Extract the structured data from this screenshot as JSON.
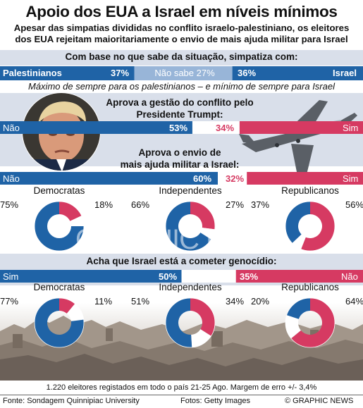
{
  "title": "Apoio dos EUA a Israel em níveis mínimos",
  "subtitle_line1": "Apesar das simpatias divididas no conflito israelo-palestiniano, os eleitores",
  "subtitle_line2": "dos EUA rejeitam maioritariamente o envio de mais ajuda militar para Israel",
  "watermark": "GRAPHIC NEWS",
  "colors": {
    "blue": "#1f63a6",
    "red": "#d63a62",
    "lightblue": "#98b5d8",
    "gray": "#d7dde8"
  },
  "sympathy": {
    "question": "Com base no que sabe da situação, simpatiza com:",
    "left_label": "Palestinianos",
    "left_pct": "37%",
    "middle_label": "Não sabe 27%",
    "right_pct": "36%",
    "right_label": "Israel",
    "values": [
      37,
      27,
      36
    ]
  },
  "caption": "Máximo de sempre para os palestinianos – e mínimo de sempre para Israel",
  "trump": {
    "question_line1": "Aprova a gestão do conflito pelo",
    "question_line2": "Presidente Trumpt:",
    "no_label": "Não",
    "no_pct": "53%",
    "yes_pct": "34%",
    "yes_label": "Sim",
    "values": [
      53,
      13,
      34
    ]
  },
  "aid": {
    "question_line1": "Aprova o envio de",
    "question_line2": "mais ajuda militar a Israel:",
    "no_label": "Não",
    "no_pct": "60%",
    "yes_pct": "32%",
    "yes_label": "Sim",
    "values": [
      60,
      8,
      32
    ]
  },
  "aid_parties": [
    {
      "party": "Democratas",
      "left_pct": "75%",
      "right_pct": "18%",
      "values": [
        75,
        7,
        18
      ]
    },
    {
      "party": "Independentes",
      "left_pct": "66%",
      "right_pct": "27%",
      "values": [
        66,
        7,
        27
      ]
    },
    {
      "party": "Republicanos",
      "left_pct": "37%",
      "right_pct": "56%",
      "values": [
        37,
        7,
        56
      ]
    }
  ],
  "genocide": {
    "question": "Acha que Israel está a cometer genocídio:",
    "yes_label": "Sim",
    "yes_pct": "50%",
    "no_pct": "35%",
    "no_label": "Não",
    "values": [
      50,
      15,
      35
    ]
  },
  "genocide_parties": [
    {
      "party": "Democratas",
      "left_pct": "77%",
      "right_pct": "11%",
      "values": [
        77,
        12,
        11
      ]
    },
    {
      "party": "Independentes",
      "left_pct": "51%",
      "right_pct": "34%",
      "values": [
        51,
        15,
        34
      ]
    },
    {
      "party": "Republicanos",
      "left_pct": "20%",
      "right_pct": "64%",
      "values": [
        20,
        16,
        64
      ]
    }
  ],
  "footnote": "1.220 eleitores registados em todo o país 21-25 Ago. Margem de erro +/- 3,4%",
  "source": "Fonte: Sondagem Quinnipiac University",
  "photos": "Fotos: Getty Images",
  "copyright": "© GRAPHIC NEWS",
  "chart_data": [
    {
      "type": "bar",
      "title": "Com base no que sabe da situação, simpatiza com:",
      "categories": [
        "Palestinianos",
        "Não sabe",
        "Israel"
      ],
      "values": [
        37,
        27,
        36
      ]
    },
    {
      "type": "bar",
      "title": "Aprova a gestão do conflito pelo Presidente Trumpt:",
      "categories": [
        "Não",
        "Sim"
      ],
      "values": [
        53,
        34
      ]
    },
    {
      "type": "bar",
      "title": "Aprova o envio de mais ajuda militar a Israel:",
      "categories": [
        "Não",
        "Sim"
      ],
      "values": [
        60,
        32
      ]
    },
    {
      "type": "pie",
      "title": "Democratas",
      "values": [
        75,
        18
      ]
    },
    {
      "type": "pie",
      "title": "Independentes",
      "values": [
        66,
        27
      ]
    },
    {
      "type": "pie",
      "title": "Republicanos",
      "values": [
        37,
        56
      ]
    },
    {
      "type": "bar",
      "title": "Acha que Israel está a cometer genocídio:",
      "categories": [
        "Sim",
        "Não"
      ],
      "values": [
        50,
        35
      ]
    },
    {
      "type": "pie",
      "title": "Democratas",
      "values": [
        77,
        11
      ]
    },
    {
      "type": "pie",
      "title": "Independentes",
      "values": [
        51,
        34
      ]
    },
    {
      "type": "pie",
      "title": "Republicanos",
      "values": [
        20,
        64
      ]
    }
  ]
}
